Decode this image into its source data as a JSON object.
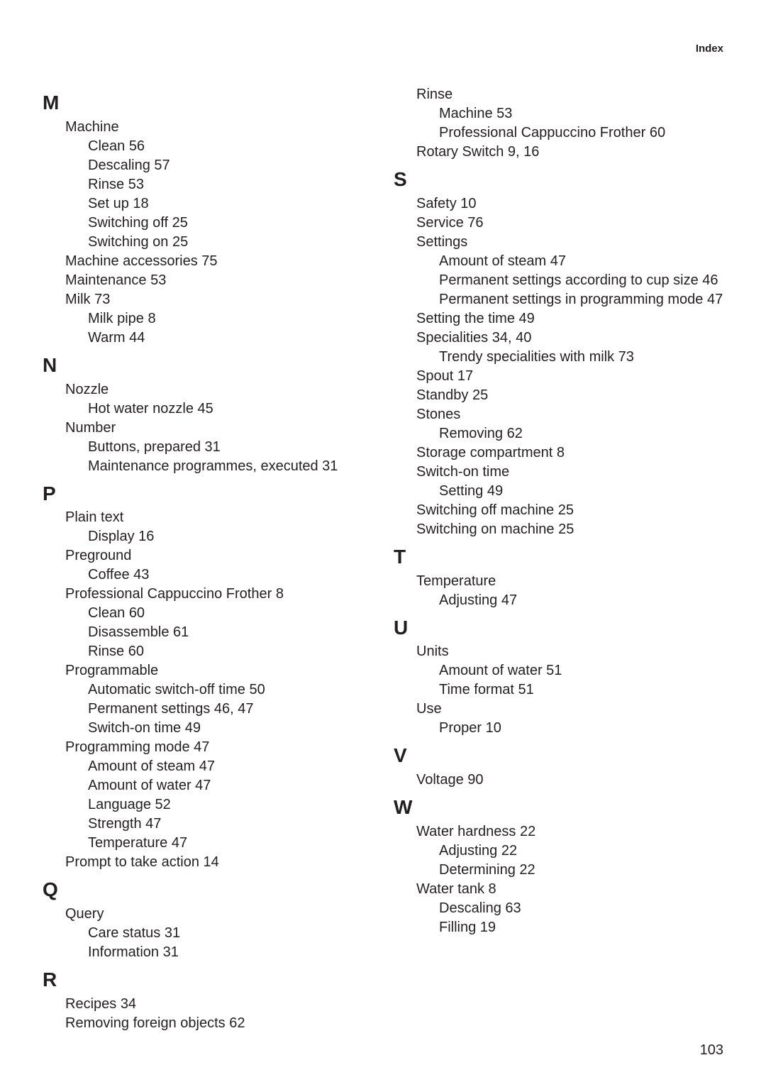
{
  "header": {
    "title": "Index"
  },
  "page_number": "103",
  "font": {
    "body_size_pt": 15,
    "letter_size_pt": 21,
    "weight_body": 300,
    "weight_letter": 600
  },
  "colors": {
    "text": "#231f20",
    "background": "#ffffff"
  },
  "left_column": [
    {
      "type": "letter",
      "text": "M"
    },
    {
      "type": "lvl1",
      "text": "Machine"
    },
    {
      "type": "lvl2",
      "text": "Clean  56"
    },
    {
      "type": "lvl2",
      "text": "Descaling  57"
    },
    {
      "type": "lvl2",
      "text": "Rinse  53"
    },
    {
      "type": "lvl2",
      "text": "Set up  18"
    },
    {
      "type": "lvl2",
      "text": "Switching off  25"
    },
    {
      "type": "lvl2",
      "text": "Switching on  25"
    },
    {
      "type": "lvl1",
      "text": "Machine accessories  75"
    },
    {
      "type": "lvl1",
      "text": "Maintenance  53"
    },
    {
      "type": "lvl1",
      "text": "Milk  73"
    },
    {
      "type": "lvl2",
      "text": "Milk pipe  8"
    },
    {
      "type": "lvl2",
      "text": "Warm  44"
    },
    {
      "type": "letter",
      "text": "N"
    },
    {
      "type": "lvl1",
      "text": "Nozzle"
    },
    {
      "type": "lvl2",
      "text": "Hot water nozzle  45"
    },
    {
      "type": "lvl1",
      "text": "Number"
    },
    {
      "type": "lvl2",
      "text": "Buttons, prepared  31"
    },
    {
      "type": "lvl2",
      "text": "Maintenance programmes, executed  31"
    },
    {
      "type": "letter",
      "text": "P"
    },
    {
      "type": "lvl1",
      "text": "Plain text"
    },
    {
      "type": "lvl2",
      "text": "Display  16"
    },
    {
      "type": "lvl1",
      "text": "Preground"
    },
    {
      "type": "lvl2",
      "text": "Coffee  43"
    },
    {
      "type": "lvl1",
      "text": "Professional Cappuccino Frother  8"
    },
    {
      "type": "lvl2",
      "text": "Clean  60"
    },
    {
      "type": "lvl2",
      "text": "Disassemble  61"
    },
    {
      "type": "lvl2",
      "text": "Rinse  60"
    },
    {
      "type": "lvl1",
      "text": "Programmable"
    },
    {
      "type": "lvl2",
      "text": "Automatic switch-off time  50"
    },
    {
      "type": "lvl2",
      "text": "Permanent settings  46, 47"
    },
    {
      "type": "lvl2",
      "text": "Switch-on time  49"
    },
    {
      "type": "lvl1",
      "text": "Programming mode  47"
    },
    {
      "type": "lvl2",
      "text": "Amount of steam  47"
    },
    {
      "type": "lvl2",
      "text": "Amount of water  47"
    },
    {
      "type": "lvl2",
      "text": "Language  52"
    },
    {
      "type": "lvl2",
      "text": "Strength  47"
    },
    {
      "type": "lvl2",
      "text": "Temperature  47"
    },
    {
      "type": "lvl1",
      "text": "Prompt to take action  14"
    },
    {
      "type": "letter",
      "text": "Q"
    },
    {
      "type": "lvl1",
      "text": "Query"
    },
    {
      "type": "lvl2",
      "text": "Care status  31"
    },
    {
      "type": "lvl2",
      "text": "Information  31"
    },
    {
      "type": "letter",
      "text": "R"
    },
    {
      "type": "lvl1",
      "text": "Recipes  34"
    },
    {
      "type": "lvl1",
      "text": "Removing foreign objects  62"
    }
  ],
  "right_column": [
    {
      "type": "lvl1",
      "text": "Rinse"
    },
    {
      "type": "lvl2",
      "text": "Machine  53"
    },
    {
      "type": "lvl2",
      "text": "Professional Cappuccino Frother  60"
    },
    {
      "type": "lvl1",
      "text": "Rotary Switch  9, 16"
    },
    {
      "type": "letter",
      "text": "S"
    },
    {
      "type": "lvl1",
      "text": "Safety  10"
    },
    {
      "type": "lvl1",
      "text": "Service  76"
    },
    {
      "type": "lvl1",
      "text": "Settings"
    },
    {
      "type": "lvl2",
      "text": "Amount of steam  47"
    },
    {
      "type": "lvl2",
      "text": "Permanent settings according to cup size  46"
    },
    {
      "type": "lvl2",
      "text": "Permanent settings in programming mode  47"
    },
    {
      "type": "lvl1",
      "text": "Setting the time  49"
    },
    {
      "type": "lvl1",
      "text": "Specialities  34, 40"
    },
    {
      "type": "lvl2",
      "text": "Trendy specialities with milk  73"
    },
    {
      "type": "lvl1",
      "text": "Spout  17"
    },
    {
      "type": "lvl1",
      "text": "Standby  25"
    },
    {
      "type": "lvl1",
      "text": "Stones"
    },
    {
      "type": "lvl2",
      "text": "Removing  62"
    },
    {
      "type": "lvl1",
      "text": "Storage compartment  8"
    },
    {
      "type": "lvl1",
      "text": "Switch-on time"
    },
    {
      "type": "lvl2",
      "text": "Setting  49"
    },
    {
      "type": "lvl1",
      "text": "Switching off machine  25"
    },
    {
      "type": "lvl1",
      "text": "Switching on machine  25"
    },
    {
      "type": "letter",
      "text": "T"
    },
    {
      "type": "lvl1",
      "text": "Temperature"
    },
    {
      "type": "lvl2",
      "text": "Adjusting  47"
    },
    {
      "type": "letter",
      "text": "U"
    },
    {
      "type": "lvl1",
      "text": "Units"
    },
    {
      "type": "lvl2",
      "text": "Amount of water  51"
    },
    {
      "type": "lvl2",
      "text": "Time format  51"
    },
    {
      "type": "lvl1",
      "text": "Use"
    },
    {
      "type": "lvl2",
      "text": "Proper  10"
    },
    {
      "type": "letter",
      "text": "V"
    },
    {
      "type": "lvl1",
      "text": "Voltage  90"
    },
    {
      "type": "letter",
      "text": "W"
    },
    {
      "type": "lvl1",
      "text": "Water hardness  22"
    },
    {
      "type": "lvl2",
      "text": "Adjusting  22"
    },
    {
      "type": "lvl2",
      "text": "Determining  22"
    },
    {
      "type": "lvl1",
      "text": "Water tank  8"
    },
    {
      "type": "lvl2",
      "text": "Descaling  63"
    },
    {
      "type": "lvl2",
      "text": "Filling  19"
    }
  ]
}
